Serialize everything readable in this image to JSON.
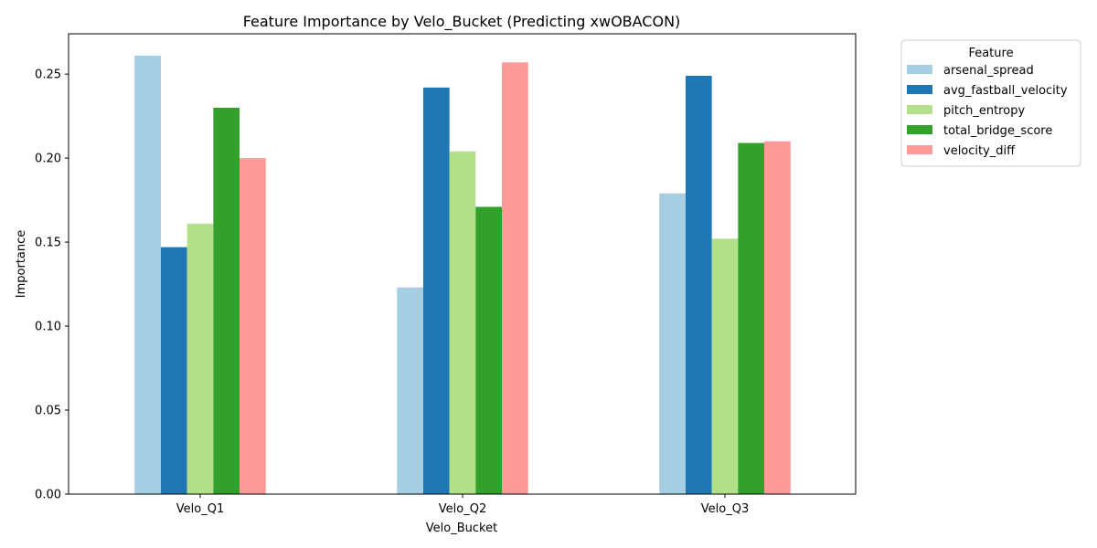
{
  "chart_data": {
    "type": "bar",
    "title": "Feature Importance by Velo_Bucket (Predicting xwOBACON)",
    "xlabel": "Velo_Bucket",
    "ylabel": "Importance",
    "categories": [
      "Velo_Q1",
      "Velo_Q2",
      "Velo_Q3"
    ],
    "ylim": [
      0,
      0.274
    ],
    "yticks": [
      0.0,
      0.05,
      0.1,
      0.15,
      0.2,
      0.25
    ],
    "ytick_labels": [
      "0.00",
      "0.05",
      "0.10",
      "0.15",
      "0.20",
      "0.25"
    ],
    "legend": {
      "title": "Feature",
      "placement": "outside-top-right"
    },
    "grid": false,
    "series": [
      {
        "name": "arsenal_spread",
        "color": "#a6cee3",
        "values": [
          0.261,
          0.123,
          0.179
        ]
      },
      {
        "name": "avg_fastball_velocity",
        "color": "#1f78b4",
        "values": [
          0.147,
          0.242,
          0.249
        ]
      },
      {
        "name": "pitch_entropy",
        "color": "#b2df8a",
        "values": [
          0.161,
          0.204,
          0.152
        ]
      },
      {
        "name": "total_bridge_score",
        "color": "#33a02c",
        "values": [
          0.23,
          0.171,
          0.209
        ]
      },
      {
        "name": "velocity_diff",
        "color": "#fb9a99",
        "values": [
          0.2,
          0.257,
          0.21
        ]
      }
    ]
  }
}
